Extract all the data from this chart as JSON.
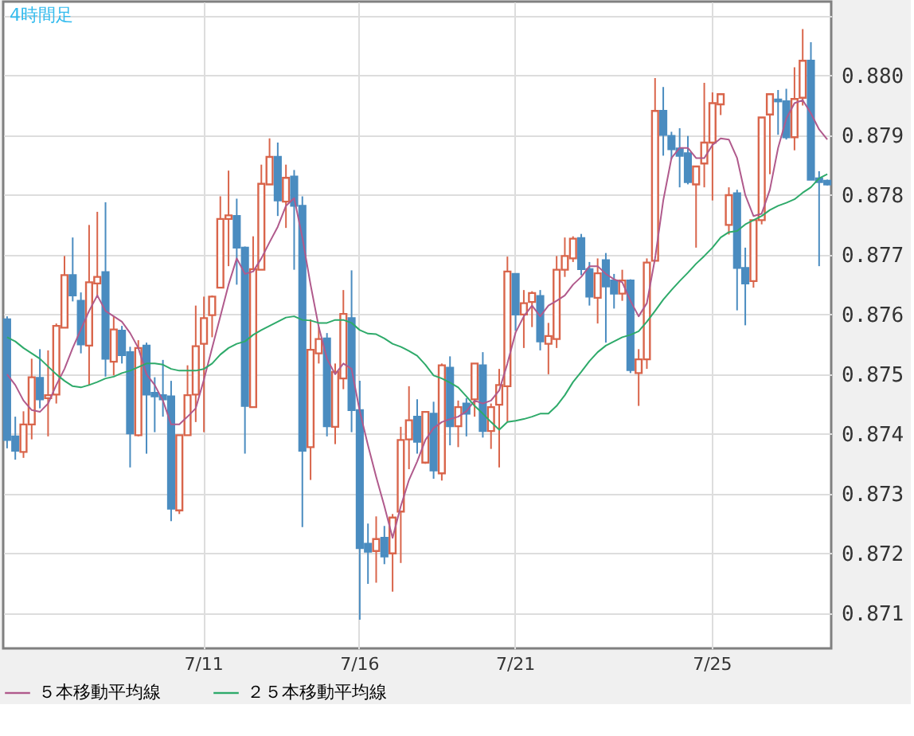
{
  "chart_data": {
    "type": "candlestick",
    "title": "4時間足",
    "categories": [
      null,
      null,
      null,
      null,
      null,
      null,
      null,
      null,
      null,
      null,
      null,
      null,
      null,
      null,
      null,
      null,
      null,
      null,
      null,
      null,
      null,
      null,
      null,
      null,
      "7/11",
      null,
      null,
      null,
      null,
      null,
      null,
      null,
      null,
      null,
      null,
      null,
      null,
      null,
      null,
      null,
      null,
      null,
      null,
      "7/16",
      null,
      null,
      null,
      null,
      null,
      null,
      null,
      null,
      null,
      null,
      null,
      null,
      null,
      null,
      null,
      null,
      null,
      null,
      "7/21",
      null,
      null,
      null,
      null,
      null,
      null,
      null,
      null,
      null,
      null,
      null,
      null,
      null,
      null,
      null,
      null,
      null,
      null,
      null,
      null,
      null,
      null,
      null,
      "7/25",
      null,
      null,
      null,
      null,
      null,
      null,
      null,
      null,
      null,
      null,
      null,
      null,
      null,
      null
    ],
    "ohlc": [
      [
        0.87592,
        0.87597,
        0.87376,
        0.8739
      ],
      [
        0.87396,
        0.87429,
        0.87357,
        0.87372
      ],
      [
        0.8737,
        0.87438,
        0.8736,
        0.87416
      ],
      [
        0.87416,
        0.87526,
        0.87391,
        0.87495
      ],
      [
        0.87494,
        0.87542,
        0.87443,
        0.87458
      ],
      [
        0.8746,
        0.8754,
        0.87396,
        0.87465
      ],
      [
        0.87466,
        0.87585,
        0.87451,
        0.87581
      ],
      [
        0.87578,
        0.87698,
        0.87578,
        0.87666
      ],
      [
        0.87666,
        0.87729,
        0.87622,
        0.87632
      ],
      [
        0.87623,
        0.87637,
        0.87535,
        0.8755
      ],
      [
        0.87548,
        0.8775,
        0.87482,
        0.87654
      ],
      [
        0.87652,
        0.87772,
        0.87628,
        0.87663
      ],
      [
        0.87671,
        0.87788,
        0.87496,
        0.87526
      ],
      [
        0.87521,
        0.87597,
        0.87498,
        0.87575
      ],
      [
        0.87573,
        0.87581,
        0.87518,
        0.87532
      ],
      [
        0.87537,
        0.87546,
        0.87344,
        0.87401
      ],
      [
        0.87398,
        0.87557,
        0.87396,
        0.87544
      ],
      [
        0.87548,
        0.87553,
        0.87367,
        0.87466
      ],
      [
        0.87469,
        0.87495,
        0.87403,
        0.87463
      ],
      [
        0.87465,
        0.87524,
        0.87429,
        0.87458
      ],
      [
        0.87463,
        0.87489,
        0.87254,
        0.87275
      ],
      [
        0.87272,
        0.87398,
        0.87266,
        0.87398
      ],
      [
        0.87398,
        0.87515,
        0.87398,
        0.87465
      ],
      [
        0.87466,
        0.87615,
        0.8742,
        0.87547
      ],
      [
        0.87551,
        0.8763,
        0.87403,
        0.87594
      ],
      [
        0.87599,
        0.87632,
        0.87562,
        0.8763
      ],
      [
        0.87645,
        0.87798,
        0.87645,
        0.8776
      ],
      [
        0.8776,
        0.87841,
        0.87681,
        0.87766
      ],
      [
        0.87765,
        0.87794,
        0.8765,
        0.87712
      ],
      [
        0.87712,
        0.87714,
        0.87367,
        0.87447
      ],
      [
        0.87445,
        0.87731,
        0.87445,
        0.87676
      ],
      [
        0.87675,
        0.87851,
        0.87675,
        0.87819
      ],
      [
        0.87818,
        0.87895,
        0.87818,
        0.87864
      ],
      [
        0.87864,
        0.87888,
        0.87765,
        0.87791
      ],
      [
        0.87789,
        0.87851,
        0.87745,
        0.87829
      ],
      [
        0.87831,
        0.87842,
        0.87675,
        0.87782
      ],
      [
        0.87782,
        0.87798,
        0.87244,
        0.87372
      ],
      [
        0.87378,
        0.87592,
        0.87323,
        0.87541
      ],
      [
        0.87535,
        0.87579,
        0.87518,
        0.87559
      ],
      [
        0.8756,
        0.87569,
        0.87396,
        0.87413
      ],
      [
        0.87412,
        0.87518,
        0.87383,
        0.87504
      ],
      [
        0.87493,
        0.87641,
        0.87475,
        0.87601
      ],
      [
        0.87594,
        0.87674,
        0.87403,
        0.8744
      ],
      [
        0.8744,
        0.87489,
        0.87089,
        0.87209
      ],
      [
        0.87216,
        0.8725,
        0.87149,
        0.87203
      ],
      [
        0.87204,
        0.87262,
        0.87151,
        0.87224
      ],
      [
        0.87226,
        0.87246,
        0.87182,
        0.87195
      ],
      [
        0.872,
        0.87266,
        0.87136,
        0.8726
      ],
      [
        0.8727,
        0.87412,
        0.87184,
        0.8739
      ],
      [
        0.87391,
        0.8748,
        0.87341,
        0.87423
      ],
      [
        0.87429,
        0.87458,
        0.87367,
        0.87387
      ],
      [
        0.87352,
        0.87438,
        0.8735,
        0.87437
      ],
      [
        0.87434,
        0.87454,
        0.87325,
        0.87339
      ],
      [
        0.87334,
        0.87518,
        0.87322,
        0.87515
      ],
      [
        0.87511,
        0.8753,
        0.87381,
        0.87413
      ],
      [
        0.87413,
        0.87456,
        0.87378,
        0.87445
      ],
      [
        0.87451,
        0.8746,
        0.87396,
        0.87434
      ],
      [
        0.87458,
        0.87518,
        0.87429,
        0.87518
      ],
      [
        0.87515,
        0.87537,
        0.87394,
        0.87405
      ],
      [
        0.87405,
        0.87451,
        0.87375,
        0.87445
      ],
      [
        0.87449,
        0.87509,
        0.87344,
        0.87482
      ],
      [
        0.8748,
        0.87697,
        0.8742,
        0.87672
      ],
      [
        0.87668,
        0.87669,
        0.87573,
        0.876
      ],
      [
        0.876,
        0.87641,
        0.87544,
        0.87619
      ],
      [
        0.87621,
        0.87639,
        0.87579,
        0.87636
      ],
      [
        0.87631,
        0.87641,
        0.8754,
        0.87555
      ],
      [
        0.87551,
        0.87586,
        0.875,
        0.87564
      ],
      [
        0.87559,
        0.87698,
        0.87544,
        0.87675
      ],
      [
        0.87675,
        0.87729,
        0.87663,
        0.87698
      ],
      [
        0.87694,
        0.87731,
        0.87688,
        0.87727
      ],
      [
        0.87728,
        0.87735,
        0.87666,
        0.87676
      ],
      [
        0.87676,
        0.87688,
        0.87615,
        0.8763
      ],
      [
        0.87628,
        0.87694,
        0.87585,
        0.87669
      ],
      [
        0.87691,
        0.87703,
        0.87553,
        0.87647
      ],
      [
        0.87657,
        0.87668,
        0.8761,
        0.87635
      ],
      [
        0.87635,
        0.87675,
        0.87623,
        0.87657
      ],
      [
        0.87657,
        0.87659,
        0.87502,
        0.87507
      ],
      [
        0.87502,
        0.87542,
        0.87447,
        0.87525
      ],
      [
        0.87525,
        0.87694,
        0.87509,
        0.87687
      ],
      [
        0.8769,
        0.87996,
        0.8769,
        0.87941
      ],
      [
        0.87941,
        0.87981,
        0.87866,
        0.87901
      ],
      [
        0.87899,
        0.87906,
        0.8786,
        0.87877
      ],
      [
        0.87878,
        0.87912,
        0.87813,
        0.87866
      ],
      [
        0.8787,
        0.87899,
        0.87818,
        0.87822
      ],
      [
        0.87818,
        0.87848,
        0.87712,
        0.87848
      ],
      [
        0.87853,
        0.87988,
        0.87813,
        0.87888
      ],
      [
        0.87888,
        0.87972,
        0.87791,
        0.87954
      ],
      [
        0.87952,
        0.87969,
        0.87934,
        0.87969
      ],
      [
        0.8775,
        0.87813,
        0.87734,
        0.878
      ],
      [
        0.87803,
        0.87809,
        0.87607,
        0.87678
      ],
      [
        0.87678,
        0.87712,
        0.87582,
        0.87652
      ],
      [
        0.87656,
        0.87758,
        0.87645,
        0.87758
      ],
      [
        0.87758,
        0.8793,
        0.87751,
        0.8793
      ],
      [
        0.87935,
        0.87969,
        0.87835,
        0.87969
      ],
      [
        0.8796,
        0.87976,
        0.87901,
        0.87957
      ],
      [
        0.87957,
        0.87978,
        0.87893,
        0.87897
      ],
      [
        0.87897,
        0.88014,
        0.87875,
        0.87961
      ],
      [
        0.87963,
        0.88078,
        0.8795,
        0.88025
      ],
      [
        0.88025,
        0.88056,
        0.87826,
        0.87826
      ],
      [
        0.87828,
        0.8784,
        0.87681,
        0.87822
      ],
      [
        0.87824,
        0.87826,
        0.87816,
        0.87818
      ]
    ],
    "colors": [
      "#4a8cc0",
      "#4a8cc0",
      "#d9654b",
      "#d9654b",
      "#4a8cc0",
      "#d9654b",
      "#d9654b",
      "#d9654b",
      "#4a8cc0",
      "#4a8cc0",
      "#d9654b",
      "#d9654b",
      "#4a8cc0",
      "#d9654b",
      "#4a8cc0",
      "#4a8cc0",
      "#d9654b",
      "#4a8cc0",
      "#4a8cc0",
      "#4a8cc0",
      "#4a8cc0",
      "#d9654b",
      "#d9654b",
      "#d9654b",
      "#d9654b",
      "#d9654b",
      "#d9654b",
      "#d9654b",
      "#4a8cc0",
      "#4a8cc0",
      "#d9654b",
      "#d9654b",
      "#d9654b",
      "#4a8cc0",
      "#d9654b",
      "#4a8cc0",
      "#4a8cc0",
      "#d9654b",
      "#d9654b",
      "#4a8cc0",
      "#d9654b",
      "#d9654b",
      "#4a8cc0",
      "#4a8cc0",
      "#4a8cc0",
      "#d9654b",
      "#4a8cc0",
      "#d9654b",
      "#d9654b",
      "#d9654b",
      "#4a8cc0",
      "#d9654b",
      "#4a8cc0",
      "#d9654b",
      "#4a8cc0",
      "#d9654b",
      "#4a8cc0",
      "#d9654b",
      "#4a8cc0",
      "#d9654b",
      "#d9654b",
      "#d9654b",
      "#4a8cc0",
      "#d9654b",
      "#d9654b",
      "#4a8cc0",
      "#d9654b",
      "#d9654b",
      "#d9654b",
      "#d9654b",
      "#4a8cc0",
      "#4a8cc0",
      "#d9654b",
      "#4a8cc0",
      "#4a8cc0",
      "#d9654b",
      "#4a8cc0",
      "#d9654b",
      "#d9654b",
      "#d9654b",
      "#4a8cc0",
      "#4a8cc0",
      "#4a8cc0",
      "#4a8cc0",
      "#d9654b",
      "#d9654b",
      "#d9654b",
      "#d9654b",
      "#d9654b",
      "#4a8cc0",
      "#4a8cc0",
      "#d9654b",
      "#d9654b",
      "#d9654b",
      "#4a8cc0",
      "#4a8cc0",
      "#d9654b",
      "#d9654b",
      "#4a8cc0",
      "#4a8cc0",
      "#4a8cc0"
    ],
    "series": [
      {
        "name": "５本移動平均線",
        "type": "line",
        "color": "#b05a8c",
        "values": [
          0.875,
          0.87482,
          0.87456,
          0.8744,
          0.87437,
          0.87451,
          0.87482,
          0.87509,
          0.87544,
          0.87575,
          0.87606,
          0.87632,
          0.87606,
          0.87597,
          0.87588,
          0.87569,
          0.87544,
          0.875,
          0.87482,
          0.87456,
          0.87416,
          0.87416,
          0.87429,
          0.87443,
          0.87491,
          0.87544,
          0.87597,
          0.8765,
          0.87694,
          0.87668,
          0.87672,
          0.87694,
          0.87721,
          0.87747,
          0.87782,
          0.87795,
          0.87729,
          0.8765,
          0.87579,
          0.87526,
          0.875,
          0.87518,
          0.87509,
          0.87438,
          0.87381,
          0.87328,
          0.87279,
          0.87226,
          0.87279,
          0.87323,
          0.87354,
          0.8739,
          0.8741,
          0.8742,
          0.87425,
          0.87429,
          0.87438,
          0.87456,
          0.87451,
          0.87456,
          0.87473,
          0.87518,
          0.8757,
          0.87597,
          0.87615,
          0.87597,
          0.87615,
          0.87623,
          0.87632,
          0.8765,
          0.87663,
          0.87681,
          0.87681,
          0.87668,
          0.87659,
          0.87654,
          0.87623,
          0.87597,
          0.87619,
          0.87694,
          0.87791,
          0.87862,
          0.87879,
          0.87879,
          0.87862,
          0.87862,
          0.87884,
          0.87895,
          0.87893,
          0.87862,
          0.878,
          0.87765,
          0.87769,
          0.87809,
          0.87879,
          0.87928,
          0.87954,
          0.87959,
          0.87937,
          0.8791,
          0.87893
        ]
      },
      {
        "name": "２５本移動平均線",
        "type": "line",
        "color": "#2eaa6a",
        "values": [
          0.87562,
          0.87555,
          0.87544,
          0.87535,
          0.87526,
          0.87513,
          0.875,
          0.87489,
          0.8748,
          0.87478,
          0.87482,
          0.87487,
          0.87493,
          0.87496,
          0.87502,
          0.87506,
          0.87512,
          0.87518,
          0.87518,
          0.87516,
          0.87509,
          0.87506,
          0.87506,
          0.87506,
          0.87509,
          0.87518,
          0.87533,
          0.87544,
          0.87551,
          0.87555,
          0.87566,
          0.87574,
          0.87581,
          0.87588,
          0.87595,
          0.87597,
          0.87591,
          0.8759,
          0.87586,
          0.87586,
          0.87591,
          0.87591,
          0.87586,
          0.87574,
          0.87568,
          0.87567,
          0.8756,
          0.87551,
          0.87546,
          0.87539,
          0.87531,
          0.87516,
          0.87498,
          0.87493,
          0.87486,
          0.87478,
          0.87463,
          0.87447,
          0.87434,
          0.8742,
          0.87407,
          0.8742,
          0.87422,
          0.87425,
          0.87429,
          0.87434,
          0.87434,
          0.87447,
          0.87465,
          0.87487,
          0.87504,
          0.87522,
          0.87537,
          0.87548,
          0.87555,
          0.87562,
          0.87566,
          0.87572,
          0.87588,
          0.87606,
          0.87625,
          0.87641,
          0.87656,
          0.8767,
          0.87685,
          0.87698,
          0.87712,
          0.87729,
          0.87738,
          0.8774,
          0.87751,
          0.87758,
          0.87765,
          0.87775,
          0.87782,
          0.87787,
          0.87793,
          0.87804,
          0.87813,
          0.87828,
          0.87835
        ]
      }
    ],
    "ylim": [
      0.87041,
      0.88124
    ],
    "yticks": [
      {
        "value": 0.871,
        "label": "0.871"
      },
      {
        "value": 0.872,
        "label": "0.872"
      },
      {
        "value": 0.873,
        "label": "0.873"
      },
      {
        "value": 0.874,
        "label": "0.874"
      },
      {
        "value": 0.875,
        "label": "0.875"
      },
      {
        "value": 0.876,
        "label": "0.876"
      },
      {
        "value": 0.877,
        "label": "0.877"
      },
      {
        "value": 0.878,
        "label": "0.878"
      },
      {
        "value": 0.879,
        "label": "0.879"
      },
      {
        "value": 0.88,
        "label": "0.880"
      },
      {
        "value": 0.881,
        "label": null
      }
    ],
    "grid": true,
    "legend": "bottom"
  }
}
